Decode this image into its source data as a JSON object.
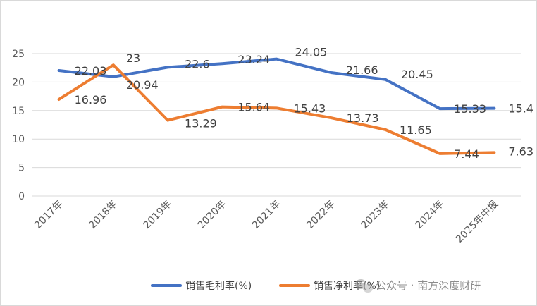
{
  "chart_data": {
    "type": "line",
    "title": "",
    "xlabel": "",
    "ylabel": "",
    "categories": [
      "2017年",
      "2018年",
      "2019年",
      "2020年",
      "2021年",
      "2022年",
      "2023年",
      "2024年",
      "2025年中报"
    ],
    "ylim": [
      0,
      25
    ],
    "yticks": [
      0,
      5,
      10,
      15,
      20,
      25
    ],
    "grid": true,
    "legend_position": "bottom",
    "series": [
      {
        "name": "销售毛利率(%)",
        "color": "#4472C4",
        "values": [
          22.03,
          20.94,
          22.6,
          23.24,
          24.05,
          21.66,
          20.45,
          15.33,
          15.4
        ]
      },
      {
        "name": "销售净利率(%)",
        "color": "#ED7D31",
        "values": [
          16.96,
          23,
          13.29,
          15.64,
          15.43,
          13.73,
          11.65,
          7.44,
          7.63
        ]
      }
    ]
  },
  "watermark": {
    "text": "公众号 · 南方深度财研",
    "icon": "wechat-icon"
  }
}
